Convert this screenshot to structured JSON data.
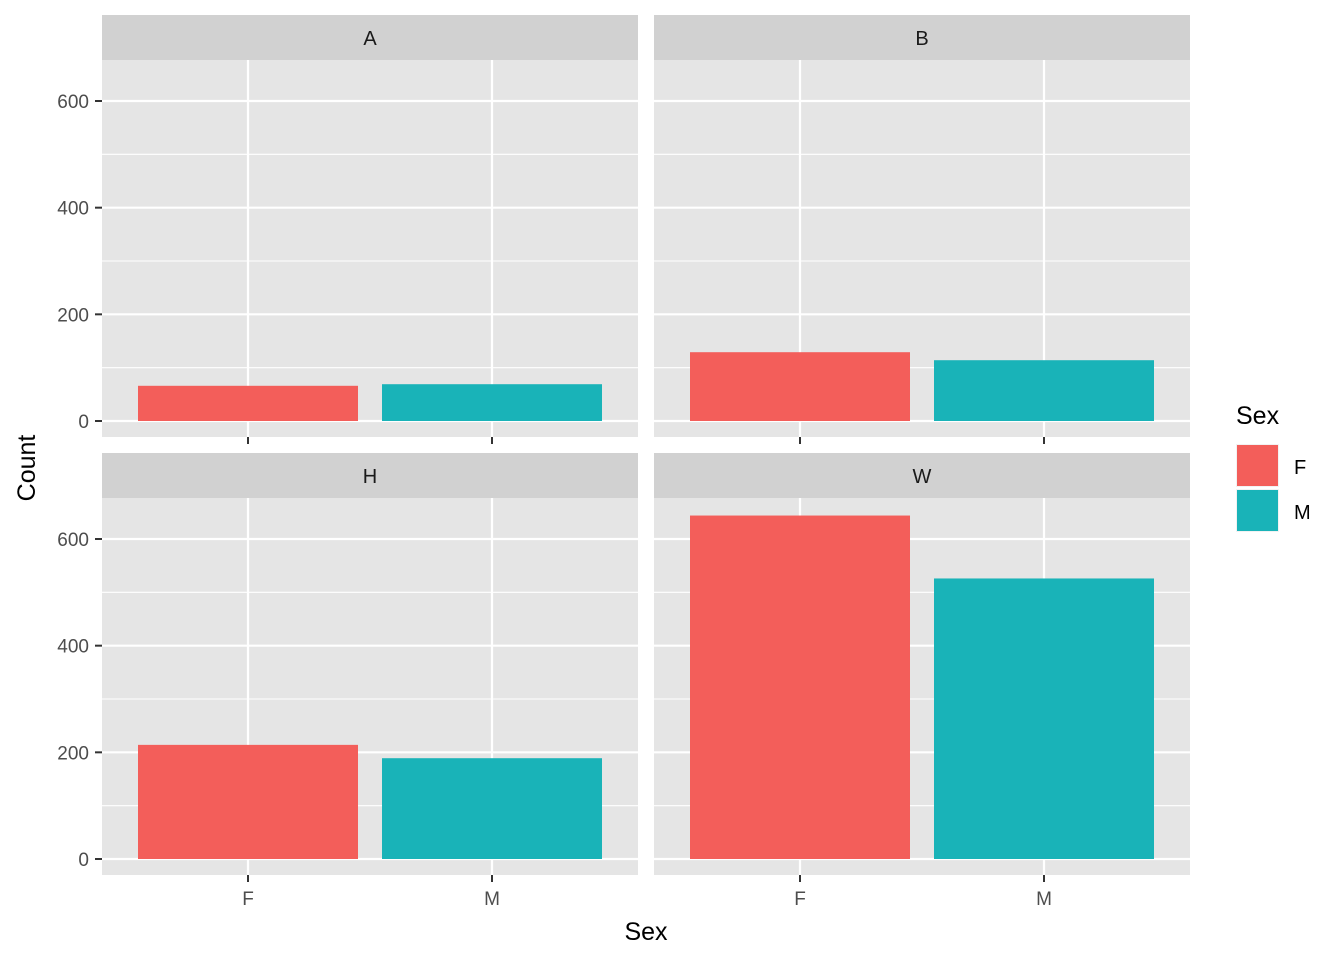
{
  "chart_data": {
    "type": "bar",
    "facets": [
      {
        "label": "A",
        "values": [
          {
            "x": "F",
            "y": 66
          },
          {
            "x": "M",
            "y": 69
          }
        ]
      },
      {
        "label": "B",
        "values": [
          {
            "x": "F",
            "y": 129
          },
          {
            "x": "M",
            "y": 114
          }
        ]
      },
      {
        "label": "H",
        "values": [
          {
            "x": "F",
            "y": 214
          },
          {
            "x": "M",
            "y": 189
          }
        ]
      },
      {
        "label": "W",
        "values": [
          {
            "x": "F",
            "y": 644
          },
          {
            "x": "M",
            "y": 526
          }
        ]
      }
    ],
    "categories": [
      "F",
      "M"
    ],
    "xlabel": "Sex",
    "ylabel": "Count",
    "ylim": [
      -32,
      672
    ],
    "yticks": [
      0,
      200,
      400,
      600
    ],
    "legend": {
      "title": "Sex",
      "placement": "right",
      "items": [
        {
          "label": "F",
          "color": "#F35E5A"
        },
        {
          "label": "M",
          "color": "#19B3B8"
        }
      ]
    },
    "grid": true
  },
  "colors": {
    "panel_bg": "#E5E5E5",
    "strip_bg": "#D1D1D1",
    "grid": "#FFFFFF"
  }
}
